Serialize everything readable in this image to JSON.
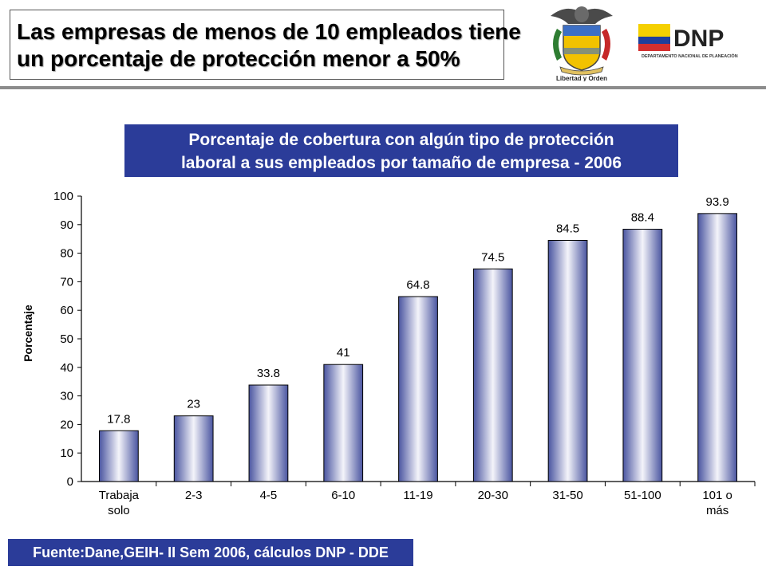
{
  "header": {
    "title_line1": "Las empresas de menos de 10 empleados tiene",
    "title_line2": "un porcentaje de protección menor a 50%",
    "crest_motto": "Libertad y Orden",
    "logo_text": "DNP",
    "logo_subtitle": "DEPARTAMENTO NACIONAL DE PLANEACIÓN"
  },
  "chart_data": {
    "type": "bar",
    "title_line1": "Porcentaje de cobertura con algún tipo de protección",
    "title_line2": "laboral a sus empleados por tamaño de empresa - 2006",
    "ylabel": "Porcentaje",
    "xlabel": "",
    "ylim": [
      0,
      100
    ],
    "yticks": [
      0,
      10,
      20,
      30,
      40,
      50,
      60,
      70,
      80,
      90,
      100
    ],
    "categories": [
      [
        "Trabaja",
        "solo"
      ],
      [
        "2-3"
      ],
      [
        "4-5"
      ],
      [
        "6-10"
      ],
      [
        "11-19"
      ],
      [
        "20-30"
      ],
      [
        "31-50"
      ],
      [
        "51-100"
      ],
      [
        "101 o",
        "más"
      ]
    ],
    "values": [
      17.8,
      23,
      33.8,
      41,
      64.8,
      74.5,
      84.5,
      88.4,
      93.9
    ],
    "data_labels": [
      "17.8",
      "23",
      "33.8",
      "41",
      "64.8",
      "74.5",
      "84.5",
      "88.4",
      "93.9"
    ],
    "grid": false,
    "legend": "none",
    "bar_color": "#4a55a0"
  },
  "footer": {
    "source": "Fuente:Dane,GEIH- II Sem 2006, cálculos DNP - DDE"
  }
}
